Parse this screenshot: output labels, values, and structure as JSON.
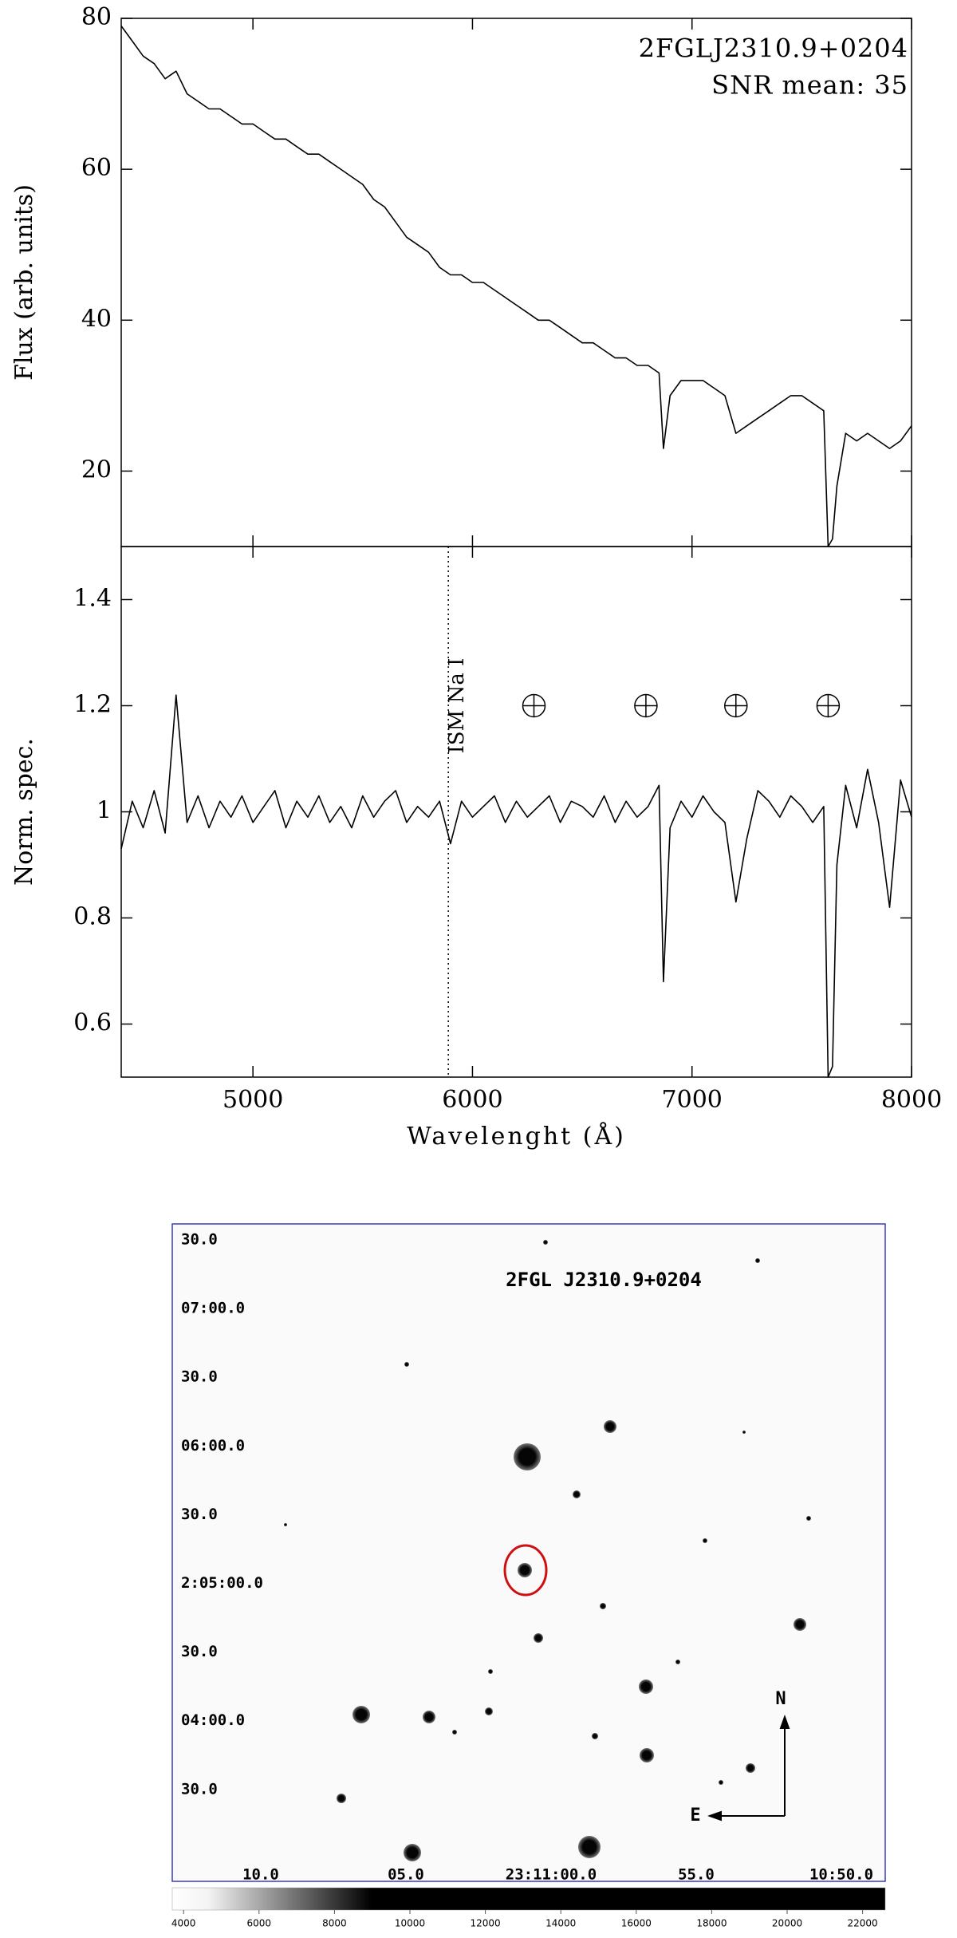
{
  "chart_data": [
    {
      "type": "line",
      "annotations": [
        "2FGLJ2310.9+0204",
        "SNR mean: 35"
      ],
      "ylabel": "Flux (arb. units)",
      "x": [
        4400,
        4450,
        4500,
        4550,
        4600,
        4650,
        4700,
        4750,
        4800,
        4850,
        4900,
        4950,
        5000,
        5050,
        5100,
        5150,
        5200,
        5250,
        5300,
        5350,
        5400,
        5450,
        5500,
        5550,
        5600,
        5650,
        5700,
        5750,
        5800,
        5850,
        5900,
        5950,
        6000,
        6050,
        6100,
        6150,
        6200,
        6250,
        6300,
        6350,
        6400,
        6450,
        6500,
        6550,
        6600,
        6650,
        6700,
        6750,
        6800,
        6850,
        6870,
        6900,
        6950,
        7000,
        7050,
        7100,
        7150,
        7200,
        7250,
        7300,
        7350,
        7400,
        7450,
        7500,
        7550,
        7600,
        7620,
        7640,
        7660,
        7700,
        7750,
        7800,
        7850,
        7900,
        7950,
        8000
      ],
      "values": [
        79,
        77,
        75,
        74,
        72,
        73,
        70,
        69,
        68,
        68,
        67,
        66,
        66,
        65,
        64,
        64,
        63,
        62,
        62,
        61,
        60,
        59,
        58,
        56,
        55,
        53,
        51,
        50,
        49,
        47,
        46,
        46,
        45,
        45,
        44,
        43,
        42,
        41,
        40,
        40,
        39,
        38,
        37,
        37,
        36,
        35,
        35,
        34,
        34,
        33,
        23,
        30,
        32,
        32,
        32,
        31,
        30,
        25,
        26,
        27,
        28,
        29,
        30,
        30,
        29,
        28,
        10,
        11,
        18,
        25,
        24,
        25,
        24,
        23,
        24,
        26
      ],
      "color": "#000000",
      "xlim": [
        4400,
        8000
      ],
      "ylim": [
        10,
        80
      ],
      "xticks": [
        5000,
        6000,
        7000,
        8000
      ],
      "yticks": [
        20,
        40,
        60,
        80
      ],
      "xtick_labels": false
    },
    {
      "type": "line",
      "ylabel": "Norm. spec.",
      "xlabel": "Wavelenght (Å)",
      "x": [
        4400,
        4450,
        4500,
        4550,
        4600,
        4650,
        4700,
        4750,
        4800,
        4850,
        4900,
        4950,
        5000,
        5050,
        5100,
        5150,
        5200,
        5250,
        5300,
        5350,
        5400,
        5450,
        5500,
        5550,
        5600,
        5650,
        5700,
        5750,
        5800,
        5850,
        5900,
        5950,
        6000,
        6050,
        6100,
        6150,
        6200,
        6250,
        6300,
        6350,
        6400,
        6450,
        6500,
        6550,
        6600,
        6650,
        6700,
        6750,
        6800,
        6850,
        6870,
        6900,
        6950,
        7000,
        7050,
        7100,
        7150,
        7200,
        7250,
        7300,
        7350,
        7400,
        7450,
        7500,
        7550,
        7600,
        7620,
        7640,
        7660,
        7700,
        7750,
        7800,
        7850,
        7900,
        7950,
        8000
      ],
      "values": [
        0.93,
        1.02,
        0.97,
        1.04,
        0.96,
        1.22,
        0.98,
        1.03,
        0.97,
        1.02,
        0.99,
        1.03,
        0.98,
        1.01,
        1.04,
        0.97,
        1.02,
        0.99,
        1.03,
        0.98,
        1.01,
        0.97,
        1.03,
        0.99,
        1.02,
        1.04,
        0.98,
        1.01,
        0.99,
        1.02,
        0.94,
        1.02,
        0.99,
        1.01,
        1.03,
        0.98,
        1.02,
        0.99,
        1.01,
        1.03,
        0.98,
        1.02,
        1.01,
        0.99,
        1.03,
        0.98,
        1.02,
        0.99,
        1.01,
        1.05,
        0.68,
        0.97,
        1.02,
        0.99,
        1.03,
        1.0,
        0.98,
        0.83,
        0.95,
        1.04,
        1.02,
        0.99,
        1.03,
        1.01,
        0.98,
        1.01,
        0.5,
        0.52,
        0.9,
        1.05,
        0.97,
        1.08,
        0.98,
        0.82,
        1.06,
        0.99
      ],
      "color": "#000000",
      "xlim": [
        4400,
        8000
      ],
      "ylim": [
        0.5,
        1.5
      ],
      "xticks": [
        5000,
        6000,
        7000,
        8000
      ],
      "yticks": [
        0.6,
        0.8,
        1,
        1.2,
        1.4
      ],
      "xtick_labels": true,
      "reference_line": {
        "label": "ISM Na I",
        "x": 5890
      },
      "telluric": {
        "x": [
          6280,
          6790,
          7200,
          7620
        ],
        "y": 1.2
      }
    }
  ],
  "finding_chart": {
    "title": "2FGL J2310.9+0204",
    "dec_labels": [
      "30.0",
      "07:00.0",
      "30.0",
      "06:00.0",
      "30.0",
      "2:05:00.0",
      "30.0",
      "04:00.0",
      "30.0"
    ],
    "ra_labels": [
      "10.0",
      "05.0",
      "23:11:00.0",
      "55.0",
      "10:50.0"
    ],
    "compass": {
      "north": "N",
      "east": "E"
    },
    "colorbar": {
      "lim": [
        3700,
        22600
      ],
      "ticks": [
        4000,
        6000,
        8000,
        10000,
        12000,
        14000,
        16000,
        18000,
        20000,
        22000
      ]
    }
  }
}
